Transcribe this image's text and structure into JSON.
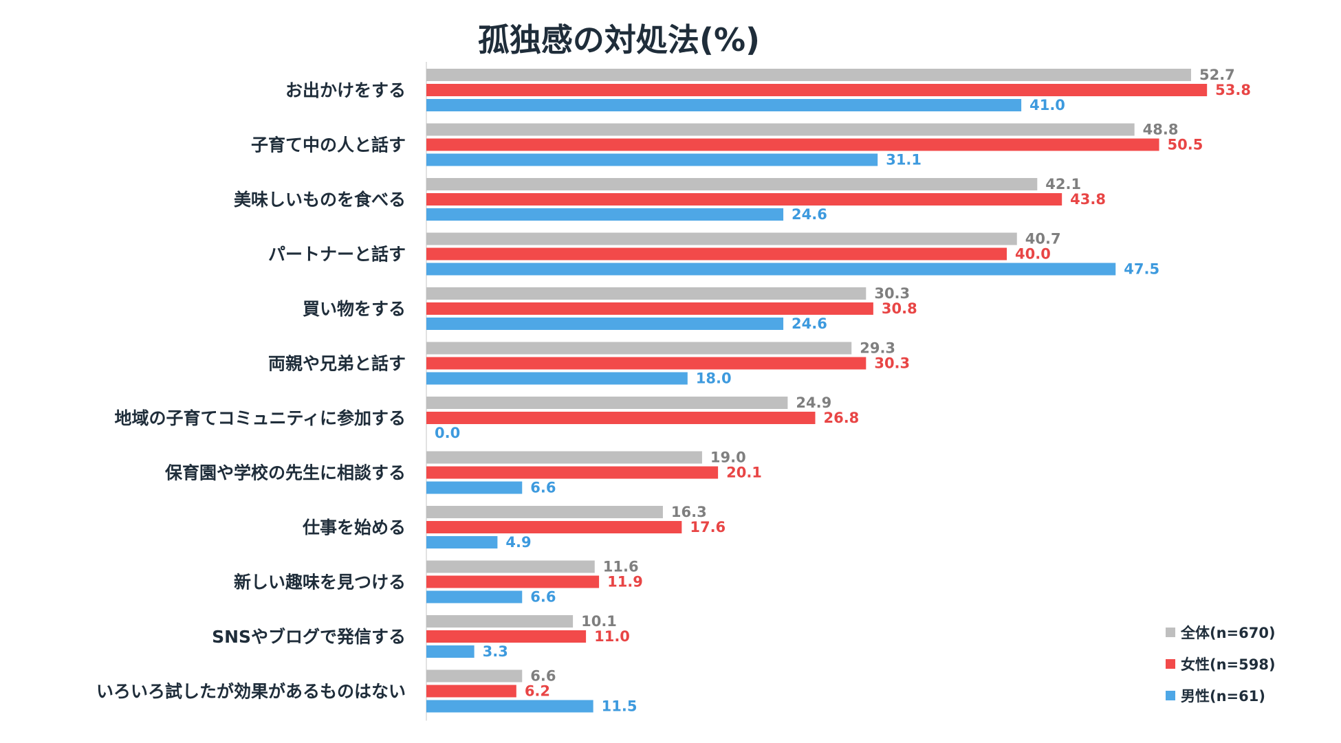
{
  "chart_data": {
    "type": "bar",
    "orientation": "horizontal",
    "title": "孤独感の対処法(%)",
    "xlabel": "",
    "ylabel": "",
    "xlim": [
      0,
      60
    ],
    "grid": false,
    "legend_position": "bottom-right",
    "categories": [
      "お出かけをする",
      "子育て中の人と話す",
      "美味しいものを食べる",
      "パートナーと話す",
      "買い物をする",
      "両親や兄弟と話す",
      "地域の子育てコミュニティに参加する",
      "保育園や学校の先生に相談する",
      "仕事を始める",
      "新しい趣味を見つける",
      "SNSやブログで発信する",
      "いろいろ試したが効果があるものはない"
    ],
    "series": [
      {
        "name": "全体(n=670)",
        "color": "#bfbfbf",
        "label_color": "#7f7f7f",
        "values": [
          52.7,
          48.8,
          42.1,
          40.7,
          30.3,
          29.3,
          24.9,
          19.0,
          16.3,
          11.6,
          10.1,
          6.6
        ]
      },
      {
        "name": "女性(n=598)",
        "color": "#f24a4a",
        "label_color": "#e84545",
        "values": [
          53.8,
          50.5,
          43.8,
          40.0,
          30.8,
          30.3,
          26.8,
          20.1,
          17.6,
          11.9,
          11.0,
          6.2
        ]
      },
      {
        "name": "男性(n=61)",
        "color": "#4ea7e6",
        "label_color": "#3d9ade",
        "values": [
          41.0,
          31.1,
          24.6,
          47.5,
          24.6,
          18.0,
          0.0,
          6.6,
          4.9,
          6.6,
          3.3,
          11.5
        ]
      }
    ]
  }
}
